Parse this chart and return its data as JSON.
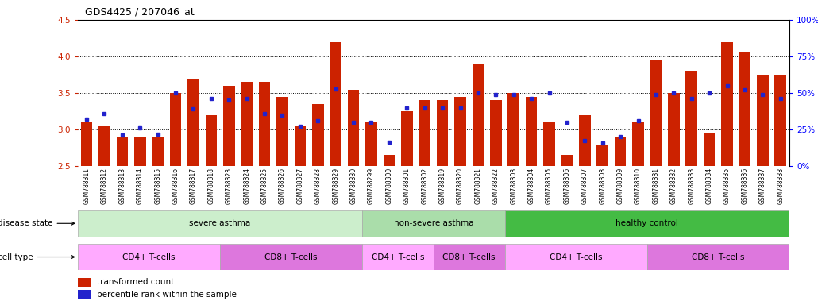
{
  "title": "GDS4425 / 207046_at",
  "samples": [
    "GSM788311",
    "GSM788312",
    "GSM788313",
    "GSM788314",
    "GSM788315",
    "GSM788316",
    "GSM788317",
    "GSM788318",
    "GSM788323",
    "GSM788324",
    "GSM788325",
    "GSM788326",
    "GSM788327",
    "GSM788328",
    "GSM788329",
    "GSM788330",
    "GSM788299",
    "GSM788300",
    "GSM788301",
    "GSM788302",
    "GSM788319",
    "GSM788320",
    "GSM788321",
    "GSM788322",
    "GSM788303",
    "GSM788304",
    "GSM788305",
    "GSM788306",
    "GSM788307",
    "GSM788308",
    "GSM788309",
    "GSM788310",
    "GSM788331",
    "GSM788332",
    "GSM788333",
    "GSM788334",
    "GSM788335",
    "GSM788336",
    "GSM788337",
    "GSM788338"
  ],
  "bar_values": [
    3.1,
    3.05,
    2.9,
    2.9,
    2.9,
    3.5,
    3.7,
    3.2,
    3.6,
    3.65,
    3.65,
    3.45,
    3.05,
    3.35,
    4.2,
    3.55,
    3.1,
    2.65,
    3.25,
    3.4,
    3.4,
    3.45,
    3.9,
    3.4,
    3.5,
    3.45,
    3.1,
    2.65,
    3.2,
    2.8,
    2.9,
    3.1,
    3.95,
    3.5,
    3.8,
    2.95,
    4.2,
    4.05,
    3.75,
    3.75
  ],
  "blue_values": [
    3.14,
    3.22,
    2.93,
    3.02,
    2.94,
    3.5,
    3.28,
    3.43,
    3.4,
    3.42,
    3.22,
    3.2,
    3.05,
    3.12,
    3.56,
    3.1,
    3.1,
    2.83,
    3.3,
    3.3,
    3.3,
    3.3,
    3.5,
    3.48,
    3.48,
    3.42,
    3.5,
    3.1,
    2.85,
    2.82,
    2.9,
    3.12,
    3.48,
    3.5,
    3.42,
    3.5,
    3.6,
    3.55,
    3.48,
    3.42
  ],
  "ds_groups": [
    {
      "label": "severe asthma",
      "start": 0,
      "end": 16,
      "color": "#cceecc"
    },
    {
      "label": "non-severe asthma",
      "start": 16,
      "end": 24,
      "color": "#aaddaa"
    },
    {
      "label": "healthy control",
      "start": 24,
      "end": 40,
      "color": "#44bb44"
    }
  ],
  "ct_groups": [
    {
      "label": "CD4+ T-cells",
      "start": 0,
      "end": 8,
      "color": "#ffaaff"
    },
    {
      "label": "CD8+ T-cells",
      "start": 8,
      "end": 16,
      "color": "#dd77dd"
    },
    {
      "label": "CD4+ T-cells",
      "start": 16,
      "end": 20,
      "color": "#ffaaff"
    },
    {
      "label": "CD8+ T-cells",
      "start": 20,
      "end": 24,
      "color": "#dd77dd"
    },
    {
      "label": "CD4+ T-cells",
      "start": 24,
      "end": 32,
      "color": "#ffaaff"
    },
    {
      "label": "CD8+ T-cells",
      "start": 32,
      "end": 40,
      "color": "#dd77dd"
    }
  ],
  "ylim": [
    2.5,
    4.5
  ],
  "yticks_left": [
    2.5,
    3.0,
    3.5,
    4.0,
    4.5
  ],
  "yticks_right_pct": [
    0,
    25,
    50,
    75,
    100
  ],
  "bar_color": "#cc2200",
  "blue_color": "#2222cc",
  "bg_color": "#ffffff"
}
